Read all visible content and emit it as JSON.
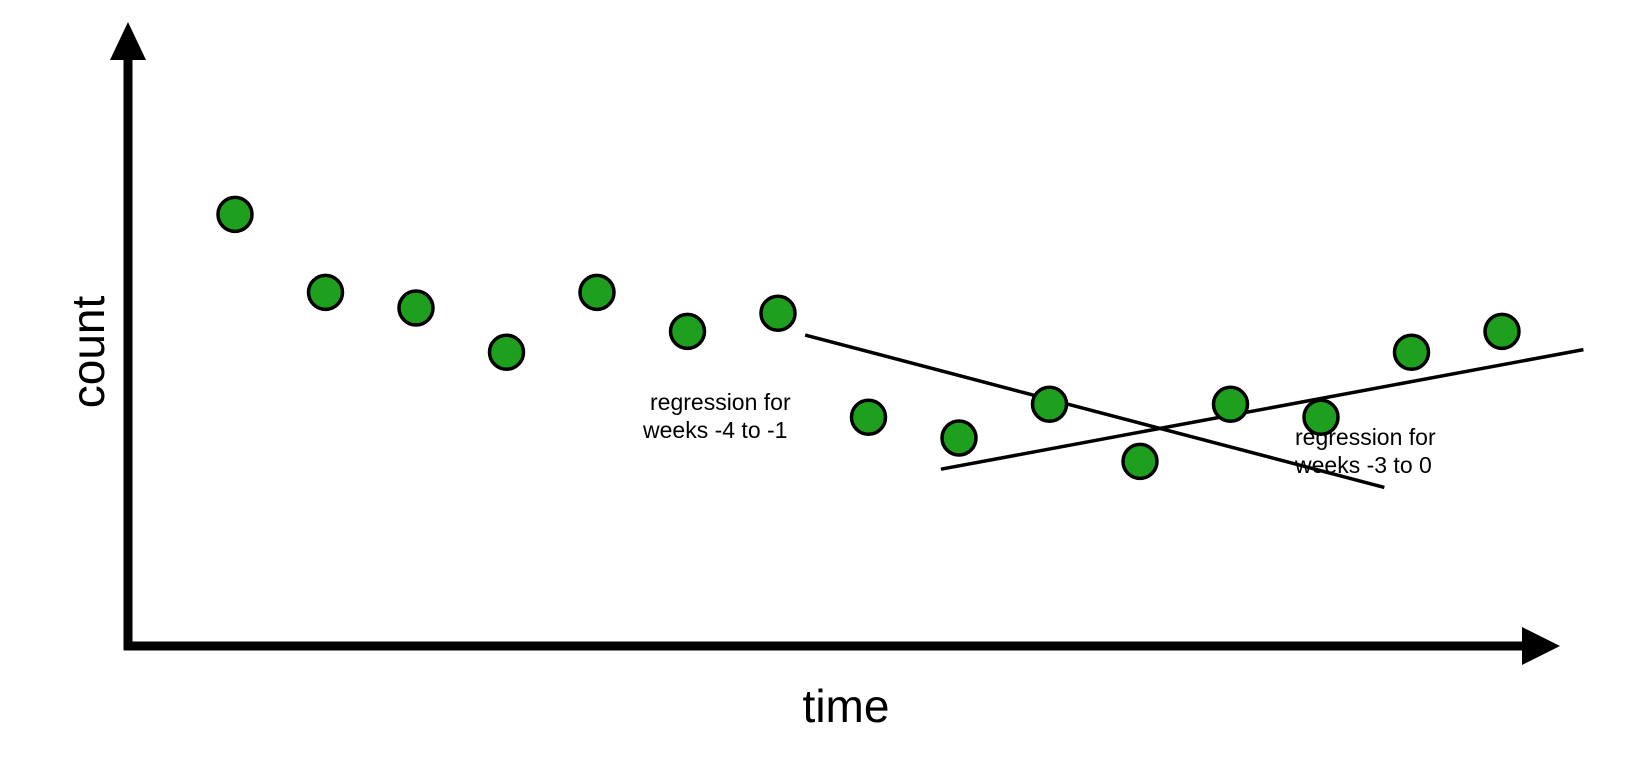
{
  "chart_data": {
    "type": "scatter",
    "xlabel": "time",
    "ylabel": "count",
    "x_ticks_shown": false,
    "y_ticks_shown": false,
    "grid": false,
    "point_color": "#1ea01e",
    "point_stroke": "#000000",
    "points": [
      {
        "x": 1,
        "y": 8.3
      },
      {
        "x": 2,
        "y": 6.8
      },
      {
        "x": 3,
        "y": 6.5
      },
      {
        "x": 4,
        "y": 5.65
      },
      {
        "x": 5,
        "y": 6.8
      },
      {
        "x": 6,
        "y": 6.05
      },
      {
        "x": 7,
        "y": 6.4
      },
      {
        "x": 8,
        "y": 4.4
      },
      {
        "x": 9,
        "y": 4.0
      },
      {
        "x": 10,
        "y": 4.65
      },
      {
        "x": 11,
        "y": 3.55
      },
      {
        "x": 12,
        "y": 4.65
      },
      {
        "x": 13,
        "y": 4.4
      },
      {
        "x": 14,
        "y": 5.65
      },
      {
        "x": 15,
        "y": 6.05
      }
    ],
    "regression_lines": [
      {
        "label": "regression for\nweeks -4 to -1",
        "x1": 7.3,
        "y1": 5.98,
        "x2": 13.7,
        "y2": 3.05
      },
      {
        "label": "regression for\nweeks -3 to 0",
        "x1": 8.8,
        "y1": 3.4,
        "x2": 15.9,
        "y2": 5.7
      }
    ]
  },
  "annotations": [
    {
      "line1": "regression for",
      "line2": "weeks -4 to -1"
    },
    {
      "line1": "regression for",
      "line2": "weeks -3 to 0"
    }
  ]
}
